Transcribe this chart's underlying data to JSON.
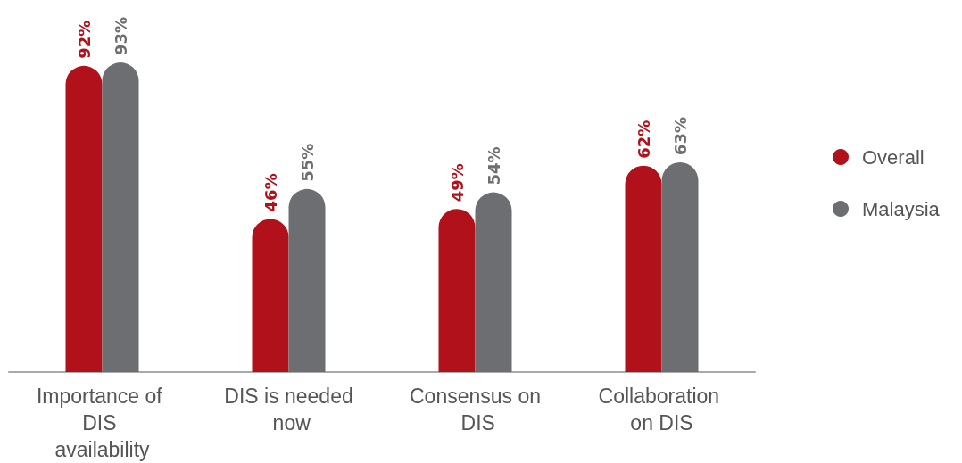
{
  "chart_data": {
    "type": "bar",
    "categories": [
      "Importance of DIS availability",
      "DIS is needed now",
      "Consensus on DIS",
      "Collaboration on DIS"
    ],
    "series": [
      {
        "name": "Overall",
        "color": "#b0111a",
        "values": [
          92,
          46,
          49,
          62
        ],
        "value_labels": [
          "92%",
          "46%",
          "49%",
          "62%"
        ]
      },
      {
        "name": "Malaysia",
        "color": "#6d6e71",
        "values": [
          93,
          55,
          54,
          63
        ],
        "value_labels": [
          "93%",
          "55%",
          "54%",
          "63%"
        ]
      }
    ],
    "legend": "right",
    "marker": "circle"
  }
}
